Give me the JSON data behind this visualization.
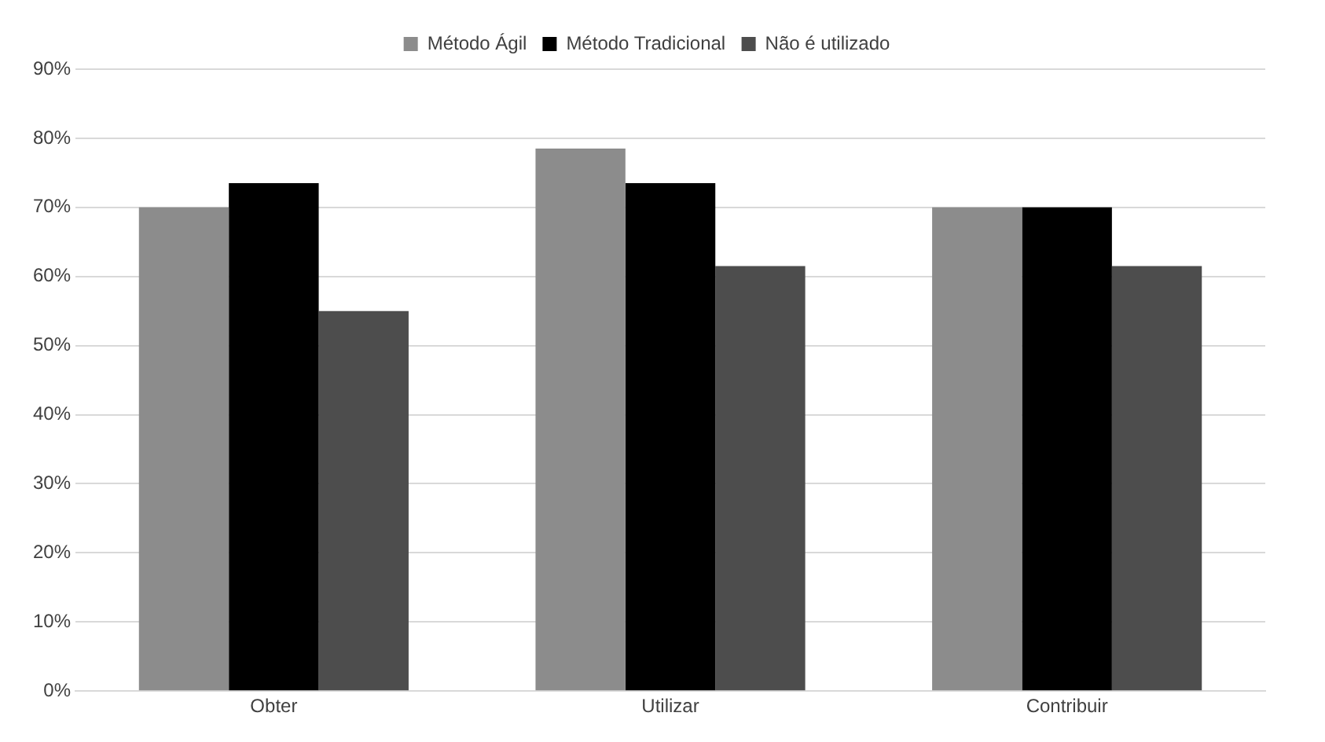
{
  "chart_data": {
    "type": "bar",
    "categories": [
      "Obter",
      "Utilizar",
      "Contribuir"
    ],
    "series": [
      {
        "name": "Método Ágil",
        "color": "#8c8c8c",
        "values": [
          70,
          78.5,
          70
        ]
      },
      {
        "name": "Método Tradicional",
        "color": "#000000",
        "values": [
          73.5,
          73.5,
          70
        ]
      },
      {
        "name": "Não é utilizado",
        "color": "#4d4d4d",
        "values": [
          55,
          61.5,
          61.5
        ]
      }
    ],
    "ylim": [
      0,
      90
    ],
    "yticks": [
      {
        "value": 0,
        "label": "0%"
      },
      {
        "value": 10,
        "label": "10%"
      },
      {
        "value": 20,
        "label": "20%"
      },
      {
        "value": 30,
        "label": "30%"
      },
      {
        "value": 40,
        "label": "40%"
      },
      {
        "value": 50,
        "label": "50%"
      },
      {
        "value": 60,
        "label": "60%"
      },
      {
        "value": 70,
        "label": "70%"
      },
      {
        "value": 80,
        "label": "80%"
      },
      {
        "value": 90,
        "label": "90%"
      }
    ],
    "grid": "y",
    "legend": "top"
  }
}
